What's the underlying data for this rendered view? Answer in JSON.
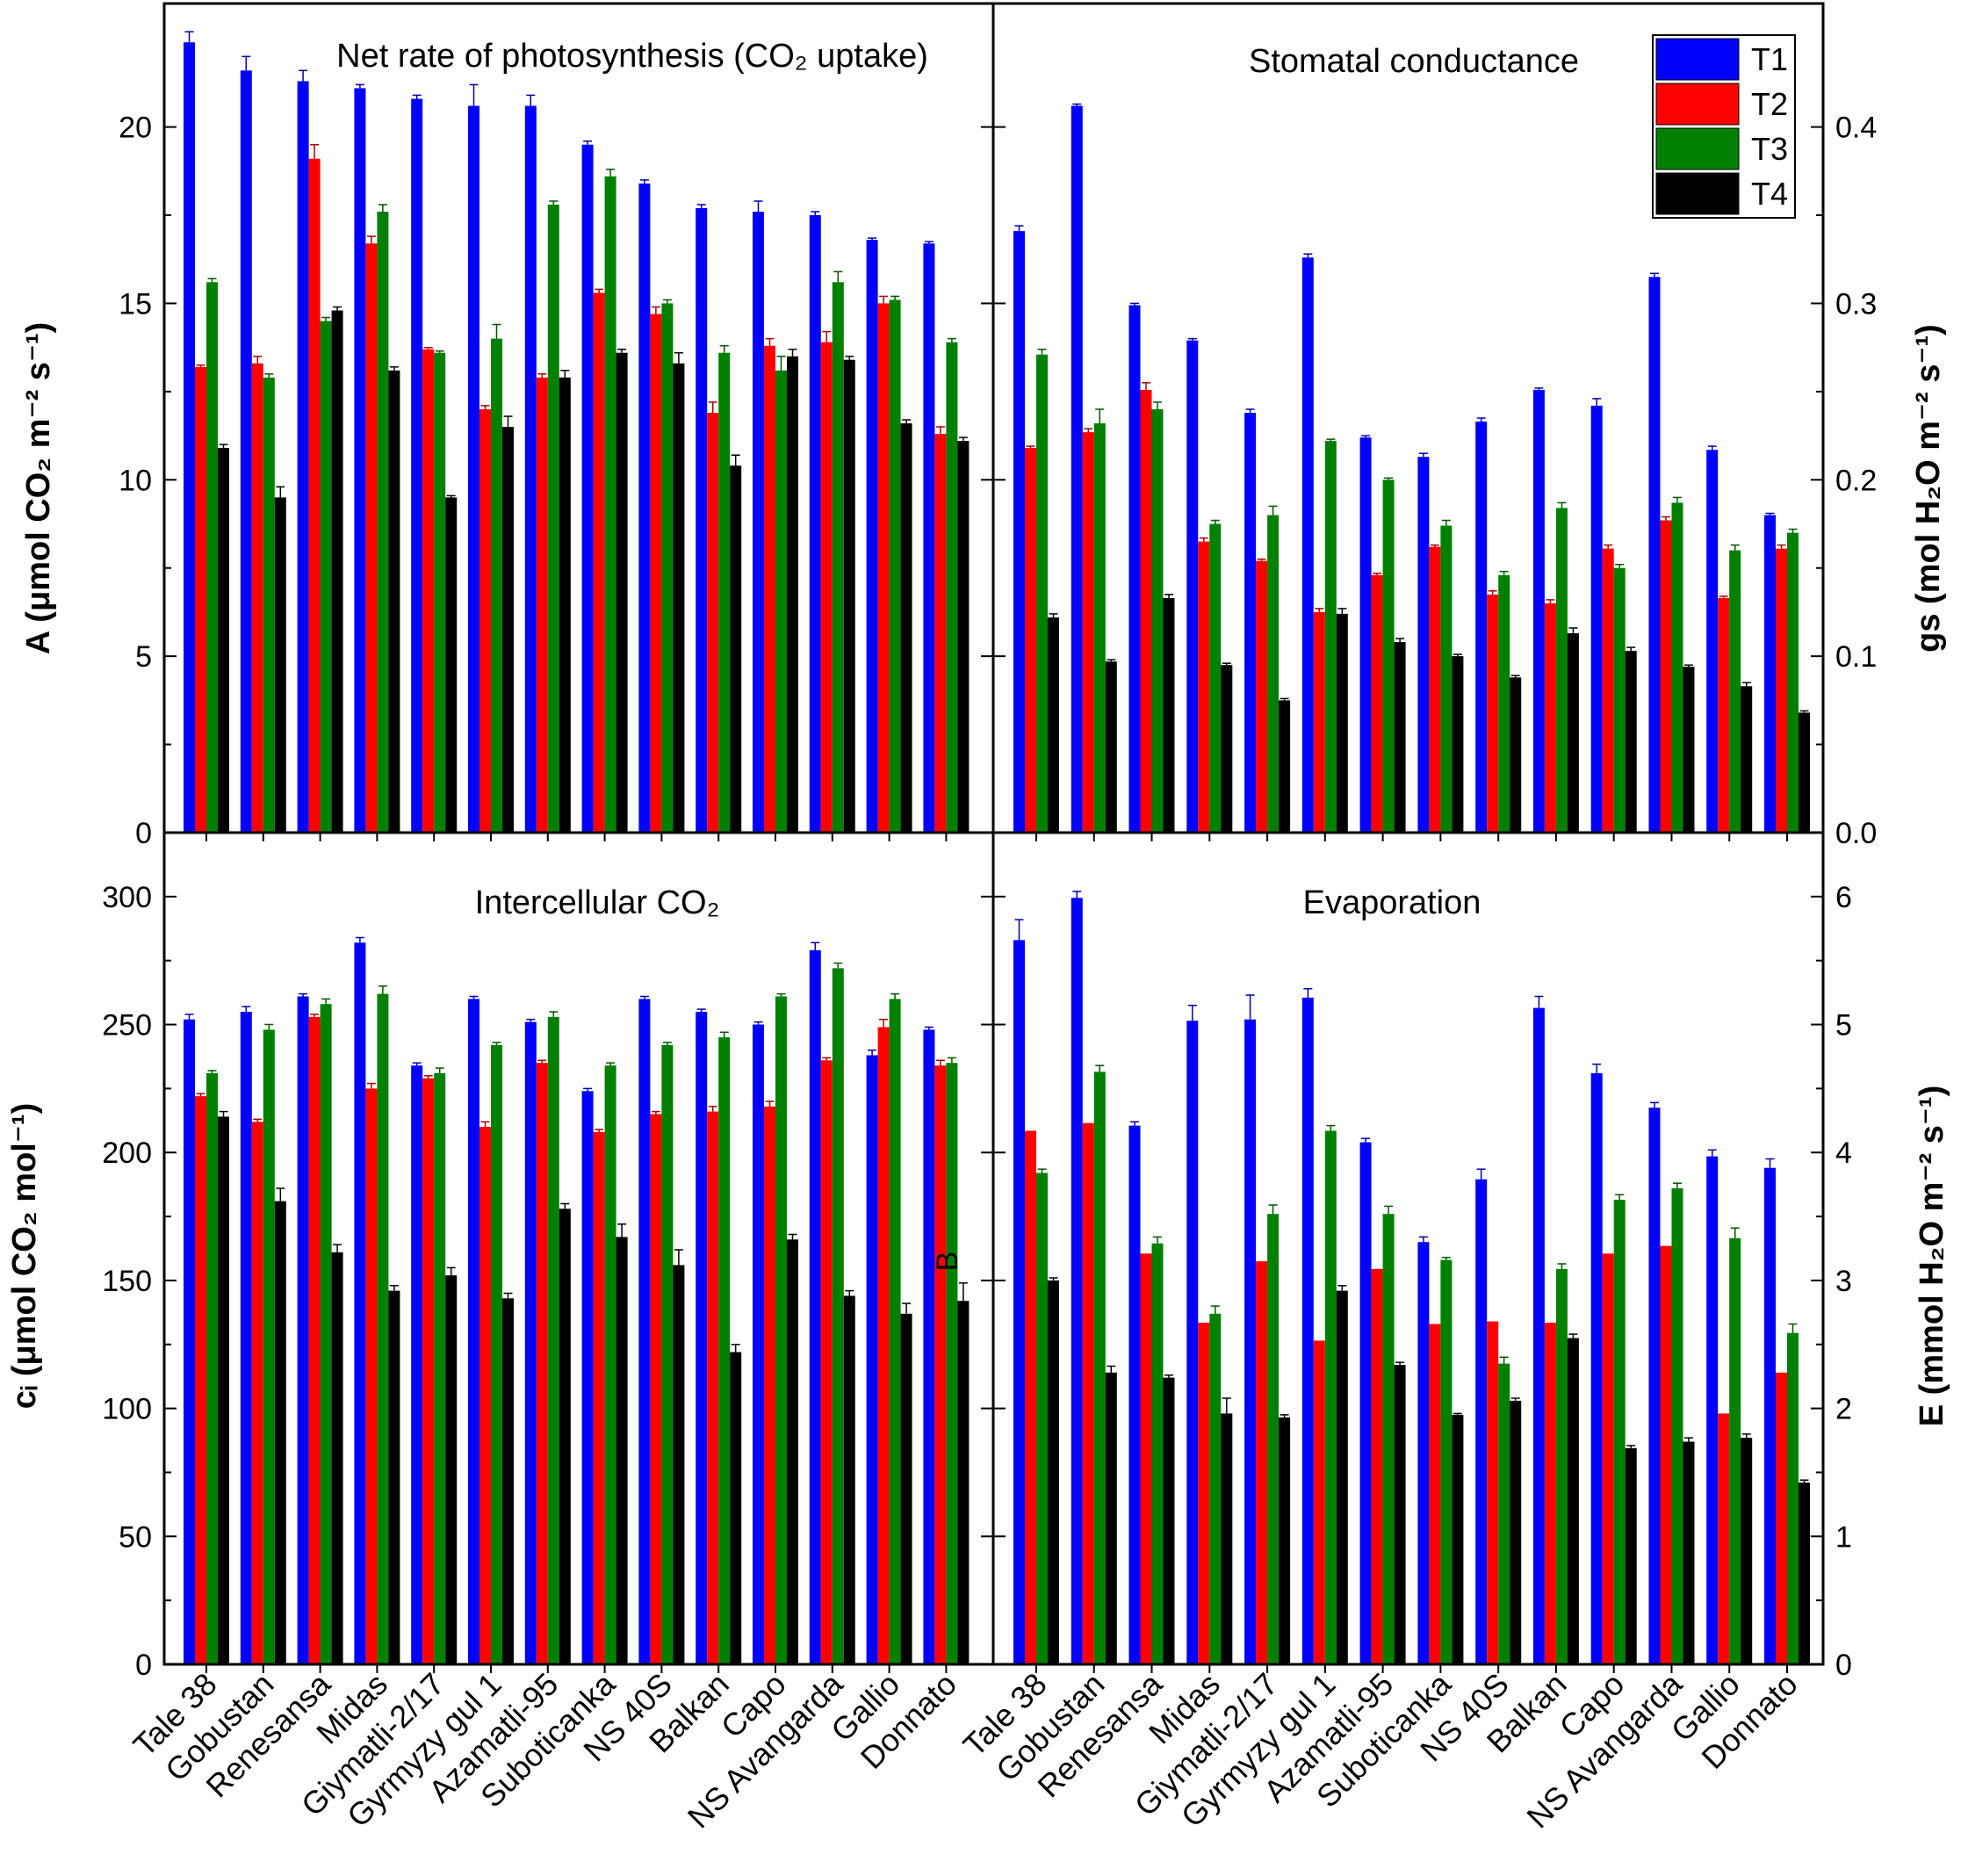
{
  "chart_data": [
    {
      "type": "bar",
      "panel": "top-left",
      "title": "Net rate of photosynthesis (CO₂ uptake)",
      "ylabel": "A (μmol CO₂ m⁻² s⁻¹)",
      "ylim": [
        0,
        23.5
      ],
      "yticks": [
        0,
        5,
        10,
        15,
        20
      ],
      "tick_labels": [
        "0",
        "5",
        "10",
        "15",
        "20"
      ],
      "categories": [
        "Tale 38",
        "Gobustan",
        "Renesansa",
        "Midas",
        "Giymatli-2/17",
        "Gyrmyzy gul 1",
        "Azamatli-95",
        "Suboticanka",
        "NS 40S",
        "Balkan",
        "Capo",
        "NS Avangarda",
        "Gallio",
        "Donnato"
      ],
      "series": [
        {
          "name": "T1",
          "values": [
            22.4,
            21.6,
            21.3,
            21.1,
            20.8,
            20.6,
            20.6,
            19.5,
            18.4,
            17.7,
            17.6,
            17.5,
            16.8,
            16.7
          ],
          "errors": [
            0.3,
            0.4,
            0.3,
            0.1,
            0.1,
            0.6,
            0.3,
            0.1,
            0.1,
            0.1,
            0.3,
            0.1,
            0.05,
            0.05
          ]
        },
        {
          "name": "T2",
          "values": [
            13.2,
            13.3,
            19.1,
            16.7,
            13.7,
            12.0,
            12.9,
            15.3,
            14.7,
            11.9,
            13.8,
            13.9,
            15.0,
            11.3
          ],
          "errors": [
            0.05,
            0.2,
            0.4,
            0.2,
            0.05,
            0.1,
            0.1,
            0.1,
            0.2,
            0.3,
            0.2,
            0.3,
            0.2,
            0.2
          ]
        },
        {
          "name": "T3",
          "values": [
            15.6,
            12.9,
            14.5,
            17.6,
            13.6,
            14.0,
            17.8,
            18.6,
            15.0,
            13.6,
            13.1,
            15.6,
            15.1,
            13.9
          ],
          "errors": [
            0.1,
            0.1,
            0.1,
            0.2,
            0.05,
            0.4,
            0.1,
            0.2,
            0.1,
            0.2,
            0.4,
            0.3,
            0.1,
            0.1
          ]
        },
        {
          "name": "T4",
          "values": [
            10.9,
            9.5,
            14.8,
            13.1,
            9.5,
            11.5,
            12.9,
            13.6,
            13.3,
            10.4,
            13.5,
            13.4,
            11.6,
            11.1
          ],
          "errors": [
            0.1,
            0.3,
            0.1,
            0.1,
            0.05,
            0.3,
            0.2,
            0.1,
            0.3,
            0.3,
            0.2,
            0.1,
            0.1,
            0.1
          ]
        }
      ]
    },
    {
      "type": "bar",
      "panel": "top-right",
      "title": "Stomatal conductance",
      "ylabel": "gs (mol H₂O m⁻² s⁻¹)",
      "ylim": [
        0,
        0.47
      ],
      "yticks": [
        0,
        0.1,
        0.2,
        0.3,
        0.4
      ],
      "tick_labels": [
        "0.0",
        "0.1",
        "0.2",
        "0.3",
        "0.4"
      ],
      "categories": [
        "Tale 38",
        "Gobustan",
        "Renesansa",
        "Midas",
        "Giymatli-2/17",
        "Gyrmyzy gul 1",
        "Azamatli-95",
        "Suboticanka",
        "NS 40S",
        "Balkan",
        "Capo",
        "NS Avangarda",
        "Gallio",
        "Donnato"
      ],
      "series": [
        {
          "name": "T1",
          "values": [
            0.341,
            0.412,
            0.299,
            0.279,
            0.238,
            0.326,
            0.224,
            0.213,
            0.233,
            0.251,
            0.242,
            0.315,
            0.217,
            0.18
          ],
          "errors": [
            0.003,
            0.001,
            0.001,
            0.001,
            0.002,
            0.002,
            0.001,
            0.002,
            0.002,
            0.001,
            0.004,
            0.002,
            0.002,
            0.001
          ]
        },
        {
          "name": "T2",
          "values": [
            0.218,
            0.227,
            0.251,
            0.165,
            0.154,
            0.125,
            0.146,
            0.162,
            0.135,
            0.13,
            0.161,
            0.177,
            0.133,
            0.161
          ],
          "errors": [
            0.001,
            0.002,
            0.004,
            0.002,
            0.001,
            0.002,
            0.001,
            0.001,
            0.002,
            0.002,
            0.002,
            0.002,
            0.001,
            0.002
          ]
        },
        {
          "name": "T3",
          "values": [
            0.271,
            0.232,
            0.24,
            0.175,
            0.18,
            0.222,
            0.2,
            0.174,
            0.146,
            0.184,
            0.15,
            0.187,
            0.16,
            0.17
          ],
          "errors": [
            0.003,
            0.008,
            0.004,
            0.002,
            0.005,
            0.001,
            0.001,
            0.003,
            0.002,
            0.003,
            0.002,
            0.003,
            0.003,
            0.002
          ]
        },
        {
          "name": "T4",
          "values": [
            0.122,
            0.097,
            0.133,
            0.095,
            0.075,
            0.124,
            0.108,
            0.1,
            0.088,
            0.113,
            0.103,
            0.094,
            0.083,
            0.068
          ],
          "errors": [
            0.002,
            0.001,
            0.002,
            0.001,
            0.001,
            0.003,
            0.002,
            0.001,
            0.001,
            0.003,
            0.002,
            0.001,
            0.002,
            0.001
          ]
        }
      ]
    },
    {
      "type": "bar",
      "panel": "bottom-left",
      "title": "Intercellular CO₂",
      "ylabel": "cᵢ (μmol CO₂ mol⁻¹)",
      "ylim": [
        0,
        325
      ],
      "yticks": [
        0,
        50,
        100,
        150,
        200,
        250,
        300
      ],
      "tick_labels": [
        "0",
        "50",
        "100",
        "150",
        "200",
        "250",
        "300"
      ],
      "categories": [
        "Tale 38",
        "Gobustan",
        "Renesansa",
        "Midas",
        "Giymatli-2/17",
        "Gyrmyzy gul 1",
        "Azamatli-95",
        "Suboticanka",
        "NS 40S",
        "Balkan",
        "Capo",
        "NS Avangarda",
        "Gallio",
        "Donnato"
      ],
      "series": [
        {
          "name": "T1",
          "values": [
            252,
            255,
            261,
            282,
            234,
            260,
            251,
            224,
            260,
            255,
            250,
            279,
            238,
            248
          ],
          "errors": [
            2,
            2,
            1,
            2,
            1,
            1,
            1,
            1,
            1,
            1,
            1,
            3,
            2,
            1
          ]
        },
        {
          "name": "T2",
          "values": [
            222,
            212,
            253,
            225,
            229,
            210,
            235,
            208,
            215,
            216,
            218,
            236,
            249,
            234
          ],
          "errors": [
            1,
            1,
            1,
            2,
            1,
            2,
            1,
            1,
            1,
            2,
            2,
            1,
            3,
            2
          ]
        },
        {
          "name": "T3",
          "values": [
            231,
            248,
            258,
            262,
            231,
            242,
            253,
            234,
            242,
            245,
            261,
            272,
            260,
            235
          ],
          "errors": [
            1,
            2,
            2,
            3,
            2,
            1,
            2,
            1,
            1,
            2,
            1,
            2,
            2,
            2
          ]
        },
        {
          "name": "T4",
          "values": [
            214,
            181,
            161,
            146,
            152,
            143,
            178,
            167,
            156,
            122,
            166,
            144,
            137,
            142
          ],
          "errors": [
            2,
            5,
            3,
            2,
            3,
            2,
            2,
            5,
            6,
            3,
            2,
            2,
            4,
            7
          ]
        }
      ]
    },
    {
      "type": "bar",
      "panel": "bottom-right",
      "title": "Evaporation",
      "ylabel": "E (mmol H₂O m⁻² s⁻¹)",
      "ylim": [
        0,
        6.5
      ],
      "yticks": [
        0,
        1,
        2,
        3,
        4,
        5,
        6
      ],
      "tick_labels": [
        "0",
        "1",
        "2",
        "3",
        "4",
        "5",
        "6"
      ],
      "categories": [
        "Tale 38",
        "Gobustan",
        "Renesansa",
        "Midas",
        "Giymatli-2/17",
        "Gyrmyzy gul 1",
        "Azamatli-95",
        "Suboticanka",
        "NS 40S",
        "Balkan",
        "Capo",
        "NS Avangarda",
        "Gallio",
        "Donnato"
      ],
      "series": [
        {
          "name": "T1",
          "values": [
            5.66,
            5.99,
            4.21,
            5.03,
            5.04,
            5.21,
            4.08,
            3.3,
            3.79,
            5.13,
            4.62,
            4.35,
            3.97,
            3.88
          ],
          "errors": [
            0.16,
            0.05,
            0.03,
            0.12,
            0.19,
            0.07,
            0.03,
            0.04,
            0.08,
            0.09,
            0.07,
            0.04,
            0.05,
            0.07
          ]
        },
        {
          "name": "T2",
          "values": [
            4.17,
            4.23,
            3.21,
            2.67,
            3.15,
            2.53,
            3.09,
            2.66,
            2.68,
            2.67,
            3.21,
            3.27,
            1.96,
            2.28
          ]
        },
        {
          "name": "T3",
          "values": [
            3.84,
            4.63,
            3.29,
            2.74,
            3.52,
            4.17,
            3.52,
            3.16,
            2.35,
            3.09,
            3.63,
            3.72,
            3.33,
            2.59
          ],
          "errors": [
            0.03,
            0.05,
            0.05,
            0.06,
            0.07,
            0.04,
            0.06,
            0.02,
            0.05,
            0.04,
            0.04,
            0.04,
            0.08,
            0.07
          ]
        },
        {
          "name": "T4",
          "values": [
            3.0,
            2.28,
            2.24,
            1.96,
            1.93,
            2.92,
            2.34,
            1.95,
            2.06,
            2.55,
            1.69,
            1.74,
            1.77,
            1.42
          ],
          "errors": [
            0.02,
            0.05,
            0.02,
            0.12,
            0.02,
            0.04,
            0.02,
            0.01,
            0.02,
            0.03,
            0.02,
            0.03,
            0.03,
            0.02
          ]
        }
      ]
    }
  ],
  "legend": {
    "placement": "top-right",
    "entries": [
      {
        "label": "T1",
        "color": "#0000ff"
      },
      {
        "label": "T2",
        "color": "#ff0000"
      },
      {
        "label": "T3",
        "color": "#008000"
      },
      {
        "label": "T4",
        "color": "#000000"
      }
    ]
  },
  "series_colors": [
    "#0000ff",
    "#ff0000",
    "#008000",
    "#000000"
  ],
  "error_bar_colors": [
    "#0000aa",
    "#aa0000",
    "#005500",
    "#000000"
  ],
  "stray_label": "B"
}
